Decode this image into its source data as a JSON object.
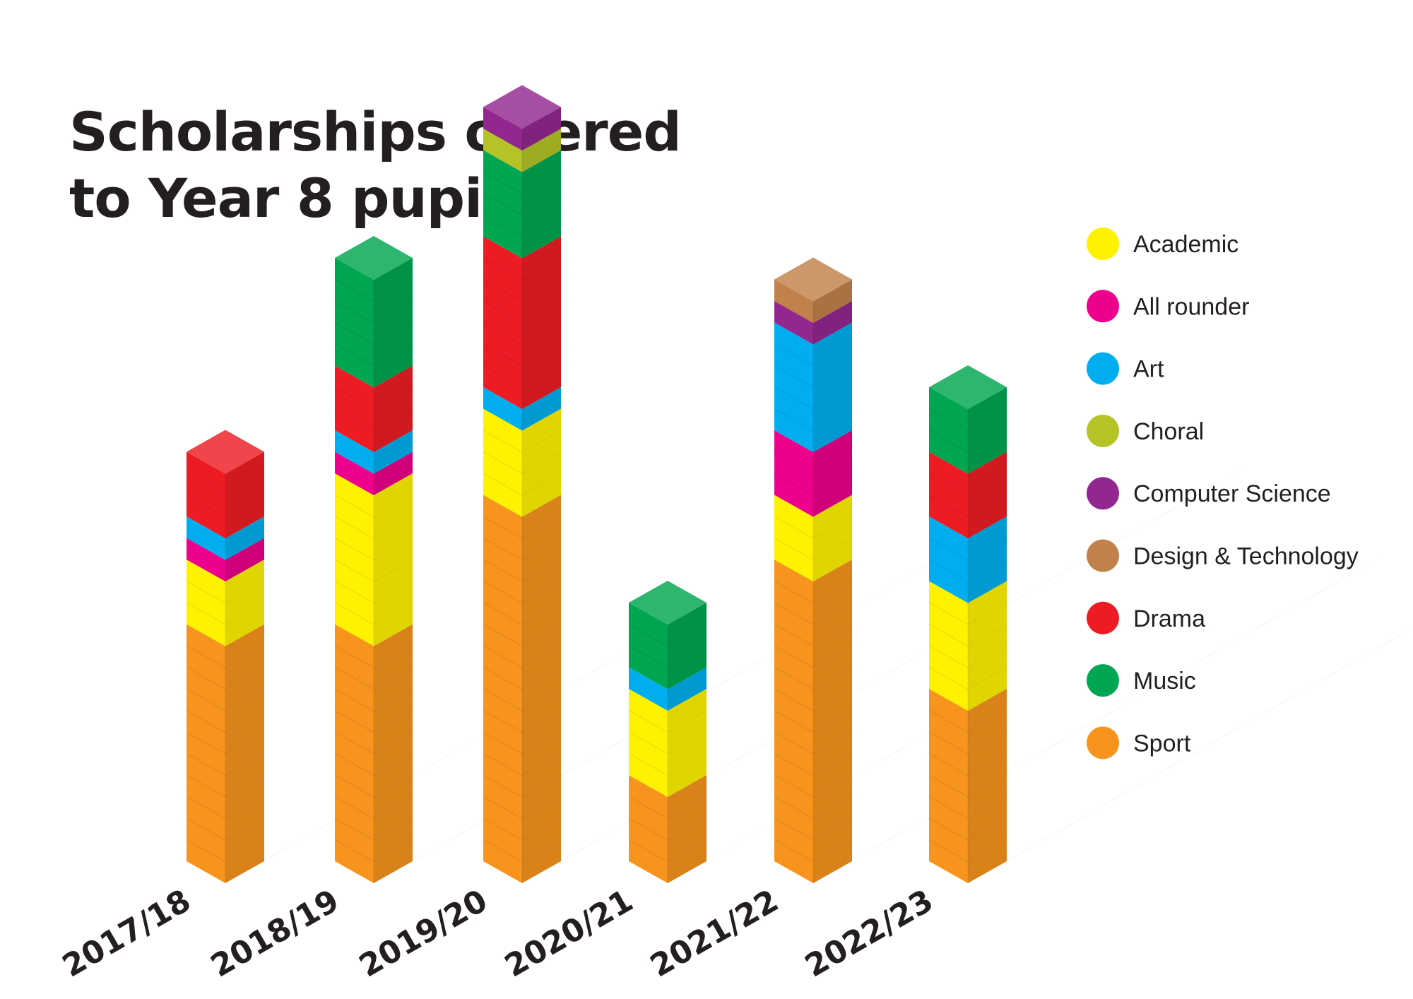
{
  "chart_data": {
    "type": "bar",
    "stacked": true,
    "title_lines": [
      "Scholarships offered",
      "to Year 8 pupils"
    ],
    "categories": [
      "2017/18",
      "2018/19",
      "2019/20",
      "2020/21",
      "2021/22",
      "2022/23"
    ],
    "series": [
      {
        "name": "Sport",
        "color": "#F7941D",
        "values": [
          11,
          11,
          17,
          4,
          14,
          8
        ]
      },
      {
        "name": "Academic",
        "color": "#FFF200",
        "values": [
          3,
          7,
          4,
          4,
          3,
          5
        ]
      },
      {
        "name": "All rounder",
        "color": "#EC008C",
        "values": [
          1,
          1,
          0,
          0,
          3,
          0
        ]
      },
      {
        "name": "Art",
        "color": "#00AEEF",
        "values": [
          1,
          1,
          1,
          1,
          5,
          3
        ]
      },
      {
        "name": "Drama",
        "color": "#ED1C24",
        "values": [
          3,
          3,
          7,
          0,
          0,
          3
        ]
      },
      {
        "name": "Music",
        "color": "#00A651",
        "values": [
          0,
          5,
          4,
          3,
          0,
          3
        ]
      },
      {
        "name": "Choral",
        "color": "#B5C327",
        "values": [
          0,
          0,
          1,
          0,
          0,
          0
        ]
      },
      {
        "name": "Computer Science",
        "color": "#92278F",
        "values": [
          0,
          0,
          1,
          0,
          1,
          0
        ]
      },
      {
        "name": "Design & Technology",
        "color": "#C1814B",
        "values": [
          0,
          0,
          0,
          0,
          1,
          0
        ]
      }
    ],
    "legend": {
      "placement": "right",
      "order": [
        "Academic",
        "All rounder",
        "Art",
        "Choral",
        "Computer Science",
        "Design & Technology",
        "Drama",
        "Music",
        "Sport"
      ]
    },
    "grid": false
  }
}
